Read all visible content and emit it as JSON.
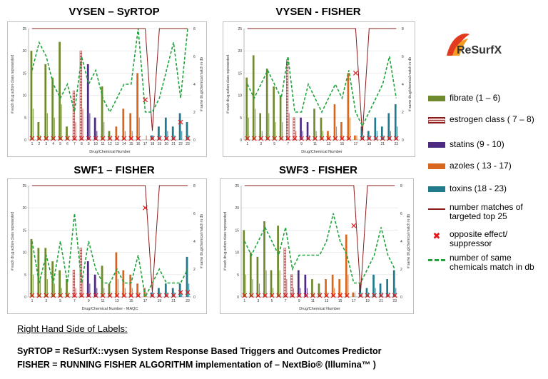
{
  "logo": {
    "text": "ReSurfX"
  },
  "legend": [
    {
      "label": "fibrate (1 – 6)",
      "color": "#6f8a2e",
      "kind": "bar"
    },
    {
      "label": "estrogen class ( 7 – 8)",
      "color": "#c0504d",
      "kind": "hatch"
    },
    {
      "label": "statins (9 - 10)",
      "color": "#4b2a80",
      "kind": "bar"
    },
    {
      "label": "azoles ( 13 - 17)",
      "color": "#d8661c",
      "kind": "bar"
    },
    {
      "label": "toxins (18 - 23)",
      "color": "#1f7a8c",
      "kind": "bar"
    },
    {
      "label": "number matches of targeted top 25",
      "color": "#8b1a1a",
      "kind": "line"
    },
    {
      "label": "opposite effect/ suppressor",
      "color": "#e31a1c",
      "kind": "x"
    },
    {
      "label": "number of same chemicals match in db",
      "color": "#1fa33a",
      "kind": "dash"
    }
  ],
  "bottom": {
    "heading": "Right Hand Side of Labels:",
    "line1": "SyRTOP = ReSurfX::vysen System Response Based Triggers and Outcomes Predictor",
    "line2": "FISHER = RUNNING FISHER ALGORITHM implementation of – NextBio® (Illumina™ )"
  },
  "chart_data": [
    {
      "type": "bar",
      "title": "VYSEN – SyRTOP",
      "xlabel": "Drug/Chemical Number",
      "ylabel": "# each drug action class represented",
      "y2label": "# same drug/chemical match in db",
      "ylim": [
        0,
        25
      ],
      "y2lim": [
        0,
        8
      ],
      "yticks": [
        0,
        5,
        10,
        15,
        20,
        25
      ],
      "y2ticks": [
        0,
        2,
        4,
        6,
        8
      ],
      "xticks": [
        "1",
        "2",
        "3",
        "4",
        "5",
        "6",
        "7",
        "8",
        "9",
        "10",
        "11",
        "12",
        "13",
        "14",
        "15",
        "16",
        "17",
        "18",
        "19",
        "20",
        "21",
        "22",
        "23"
      ],
      "bars": [
        20,
        4,
        17,
        14,
        22,
        3,
        11,
        20,
        17,
        5,
        12,
        2,
        3,
        7,
        6,
        15,
        0,
        1,
        3,
        5,
        3,
        6,
        4
      ],
      "opposite": [
        0,
        0,
        0,
        0,
        0,
        0,
        0,
        0,
        0,
        0,
        0,
        0,
        0,
        0,
        0,
        0,
        9,
        0,
        0,
        0,
        0,
        4,
        0
      ],
      "top25": [
        25,
        25,
        25,
        25,
        25,
        25,
        25,
        25,
        25,
        25,
        25,
        25,
        25,
        25,
        25,
        25,
        25,
        2,
        25,
        25,
        25,
        25,
        25
      ],
      "same_in_db": [
        5,
        7,
        6,
        4,
        3,
        4,
        2,
        6,
        4,
        5,
        3,
        2,
        3,
        4,
        4,
        8,
        2,
        2,
        3,
        5,
        7,
        3,
        8
      ]
    },
    {
      "type": "bar",
      "title": "VYSEN - FISHER",
      "xlabel": "Drug/Chemical Number",
      "ylabel": "# each drug action class represented",
      "y2label": "# same drug/chemical match in db",
      "ylim": [
        0,
        25
      ],
      "y2lim": [
        0,
        8
      ],
      "yticks": [
        0,
        5,
        10,
        15,
        20,
        25
      ],
      "y2ticks": [
        0,
        2,
        4,
        6,
        8
      ],
      "xticks": [
        "1",
        "3",
        "5",
        "7",
        "9",
        "11",
        "13",
        "15",
        "17",
        "19",
        "21",
        "23"
      ],
      "bars": [
        14,
        19,
        6,
        16,
        12,
        10,
        18,
        5,
        5,
        4,
        7,
        5,
        2,
        8,
        4,
        15,
        1,
        3,
        2,
        5,
        3,
        6,
        8
      ],
      "opposite": [
        0,
        0,
        0,
        0,
        0,
        0,
        0,
        0,
        0,
        0,
        0,
        0,
        0,
        0,
        0,
        0,
        15,
        0,
        0,
        0,
        0,
        0,
        0
      ],
      "top25": [
        25,
        25,
        25,
        25,
        25,
        25,
        25,
        25,
        25,
        25,
        25,
        25,
        25,
        25,
        25,
        25,
        25,
        1,
        25,
        25,
        25,
        25,
        25
      ],
      "same_in_db": [
        4,
        3,
        4,
        5,
        4,
        3,
        6,
        2,
        2,
        4,
        3,
        2,
        3,
        4,
        3,
        5,
        2,
        1,
        2,
        3,
        4,
        6,
        3
      ]
    },
    {
      "type": "bar",
      "title": "SWF1 – FISHER",
      "xlabel": "Drug/Chemical Number - MAQC",
      "ylabel": "# each drug action class represented",
      "y2label": "# same drug/chemical match in db",
      "ylim": [
        0,
        25
      ],
      "y2lim": [
        0,
        8
      ],
      "yticks": [
        0,
        5,
        10,
        15,
        20,
        25
      ],
      "y2ticks": [
        0,
        2,
        4,
        6,
        8
      ],
      "xticks": [
        "1",
        "3",
        "5",
        "7",
        "9",
        "11",
        "13",
        "15",
        "17",
        "19",
        "21",
        "23"
      ],
      "bars": [
        13,
        11,
        11,
        8,
        6,
        4,
        6,
        11,
        8,
        5,
        7,
        3,
        10,
        6,
        5,
        3,
        2,
        1,
        2,
        3,
        2,
        3,
        9
      ],
      "opposite": [
        0,
        0,
        0,
        0,
        0,
        0,
        0,
        0,
        0,
        0,
        0,
        0,
        0,
        0,
        0,
        0,
        20,
        0,
        0,
        0,
        0,
        1,
        1
      ],
      "top25": [
        25,
        25,
        25,
        25,
        25,
        25,
        25,
        25,
        25,
        25,
        25,
        25,
        25,
        25,
        25,
        25,
        25,
        1,
        25,
        25,
        25,
        25,
        25
      ],
      "same_in_db": [
        4,
        1,
        3,
        1,
        4,
        1,
        6,
        1,
        4,
        2,
        1,
        1,
        2,
        1,
        1,
        3,
        0,
        1,
        2,
        1,
        1,
        1,
        2
      ]
    },
    {
      "type": "bar",
      "title": "SWF3 - FISHER",
      "xlabel": "Drug/Chemical Number",
      "ylabel": "# each drug action class represented",
      "y2label": "# same drug/chemical match in db",
      "ylim": [
        0,
        25
      ],
      "y2lim": [
        0,
        8
      ],
      "yticks": [
        0,
        5,
        10,
        15,
        20,
        25
      ],
      "y2ticks": [
        0,
        2,
        4,
        6,
        8
      ],
      "xticks": [
        "1",
        "3",
        "5",
        "7",
        "9",
        "11",
        "13",
        "15",
        "17",
        "19",
        "21",
        "23"
      ],
      "bars": [
        15,
        10,
        9,
        17,
        6,
        16,
        11,
        5,
        6,
        5,
        4,
        3,
        4,
        5,
        4,
        14,
        1,
        3,
        2,
        5,
        3,
        4,
        6
      ],
      "opposite": [
        0,
        0,
        0,
        0,
        0,
        0,
        0,
        0,
        0,
        0,
        0,
        0,
        0,
        0,
        0,
        0,
        16,
        0,
        0,
        0,
        0,
        0,
        0
      ],
      "top25": [
        25,
        25,
        25,
        25,
        25,
        25,
        25,
        25,
        25,
        25,
        25,
        25,
        25,
        25,
        25,
        25,
        25,
        1,
        25,
        25,
        25,
        25,
        25
      ],
      "same_in_db": [
        4,
        3,
        4,
        5,
        4,
        3,
        5,
        2,
        3,
        3,
        3,
        3,
        4,
        6,
        4,
        3,
        1,
        1,
        2,
        3,
        5,
        3,
        2
      ]
    }
  ]
}
